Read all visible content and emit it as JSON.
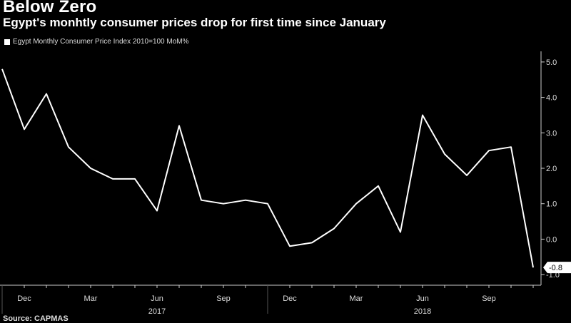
{
  "chart_data": {
    "type": "line",
    "title": "Below Zero",
    "subtitle": "Egypt's monhtly consumer prices drop for first time since January",
    "legend": "Egypt Monthly Consumer Price Index 2010=100 MoM%",
    "source": "Source: CAPMAS",
    "x": [
      "2016-11",
      "2016-12",
      "2017-01",
      "2017-02",
      "2017-03",
      "2017-04",
      "2017-05",
      "2017-06",
      "2017-07",
      "2017-08",
      "2017-09",
      "2017-10",
      "2017-11",
      "2017-12",
      "2018-01",
      "2018-02",
      "2018-03",
      "2018-04",
      "2018-05",
      "2018-06",
      "2018-07",
      "2018-08",
      "2018-09",
      "2018-10",
      "2018-11"
    ],
    "values": [
      4.8,
      3.1,
      4.1,
      2.6,
      2.0,
      1.7,
      1.7,
      0.8,
      3.2,
      1.1,
      1.0,
      1.1,
      1.0,
      -0.2,
      -0.1,
      0.3,
      1.0,
      1.5,
      0.2,
      3.5,
      2.4,
      1.8,
      2.5,
      2.6,
      -0.8
    ],
    "x_tick_labels": [
      {
        "label": "Dec",
        "index": 1
      },
      {
        "label": "Mar",
        "index": 4
      },
      {
        "label": "Jun",
        "index": 7
      },
      {
        "label": "Sep",
        "index": 10
      },
      {
        "label": "Dec",
        "index": 13
      },
      {
        "label": "Mar",
        "index": 16
      },
      {
        "label": "Jun",
        "index": 19
      },
      {
        "label": "Sep",
        "index": 22
      }
    ],
    "year_labels": [
      {
        "label": "2017",
        "index": 7
      },
      {
        "label": "2018",
        "index": 19
      }
    ],
    "y_ticks": [
      5.0,
      4.0,
      3.0,
      2.0,
      1.0,
      0.0,
      -1.0
    ],
    "y_tick_labels": [
      "5.0",
      "4.0",
      "3.0",
      "2.0",
      "1.0",
      "0.0",
      "-1.0"
    ],
    "ylim": [
      -1.3,
      5.3
    ],
    "last_value_label": "-0.8",
    "colors": {
      "background": "#000000",
      "line": "#ffffff",
      "axis": "#cccccc"
    }
  }
}
